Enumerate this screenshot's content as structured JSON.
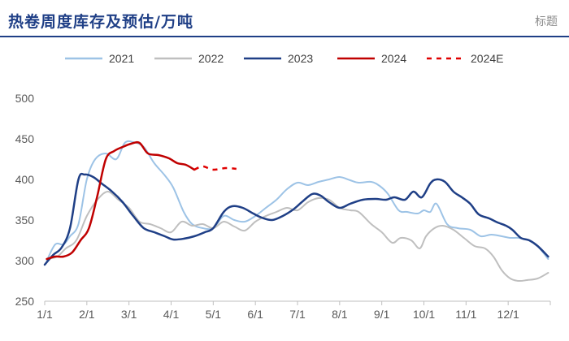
{
  "header": {
    "title": "热卷周度库存及预估/万吨",
    "tag": "标题"
  },
  "chart_data": {
    "type": "line",
    "title": "热卷周度库存及预估/万吨",
    "xlabel": "",
    "ylabel": "",
    "ylim": [
      250,
      500
    ],
    "yticks": [
      250,
      300,
      350,
      400,
      450,
      500
    ],
    "xlim": [
      0,
      12
    ],
    "xticks": [
      {
        "label": "1/1",
        "x": 0
      },
      {
        "label": "2/1",
        "x": 1
      },
      {
        "label": "3/1",
        "x": 2
      },
      {
        "label": "4/1",
        "x": 3
      },
      {
        "label": "5/1",
        "x": 4
      },
      {
        "label": "6/1",
        "x": 5
      },
      {
        "label": "7/1",
        "x": 6
      },
      {
        "label": "8/1",
        "x": 7
      },
      {
        "label": "9/1",
        "x": 8
      },
      {
        "label": "10/1",
        "x": 9
      },
      {
        "label": "11/1",
        "x": 10
      },
      {
        "label": "12/1",
        "x": 11
      }
    ],
    "grid": false,
    "legend_position": "top",
    "series": [
      {
        "name": "2021",
        "color": "#9dc3e6",
        "dashed": false,
        "width": 2,
        "points": [
          [
            0.05,
            300
          ],
          [
            0.25,
            320
          ],
          [
            0.45,
            320
          ],
          [
            0.6,
            330
          ],
          [
            0.8,
            345
          ],
          [
            1.0,
            400
          ],
          [
            1.2,
            425
          ],
          [
            1.45,
            432
          ],
          [
            1.7,
            425
          ],
          [
            1.9,
            445
          ],
          [
            2.1,
            446
          ],
          [
            2.35,
            440
          ],
          [
            2.6,
            420
          ],
          [
            2.85,
            405
          ],
          [
            3.05,
            390
          ],
          [
            3.3,
            360
          ],
          [
            3.5,
            345
          ],
          [
            3.75,
            340
          ],
          [
            4.0,
            340
          ],
          [
            4.25,
            355
          ],
          [
            4.5,
            350
          ],
          [
            4.75,
            348
          ],
          [
            5.0,
            355
          ],
          [
            5.25,
            365
          ],
          [
            5.5,
            375
          ],
          [
            5.75,
            388
          ],
          [
            6.0,
            396
          ],
          [
            6.25,
            393
          ],
          [
            6.5,
            397
          ],
          [
            6.75,
            400
          ],
          [
            7.0,
            403
          ],
          [
            7.25,
            399
          ],
          [
            7.45,
            396
          ],
          [
            7.75,
            397
          ],
          [
            7.95,
            392
          ],
          [
            8.15,
            382
          ],
          [
            8.4,
            362
          ],
          [
            8.6,
            360
          ],
          [
            8.85,
            358
          ],
          [
            9.0,
            362
          ],
          [
            9.15,
            360
          ],
          [
            9.3,
            370
          ],
          [
            9.55,
            345
          ],
          [
            9.8,
            340
          ],
          [
            10.1,
            338
          ],
          [
            10.35,
            330
          ],
          [
            10.6,
            332
          ],
          [
            10.85,
            330
          ],
          [
            11.05,
            328
          ],
          [
            11.25,
            328
          ],
          [
            11.5,
            325
          ],
          [
            11.7,
            318
          ],
          [
            11.95,
            302
          ]
        ]
      },
      {
        "name": "2022",
        "color": "#bfbfbf",
        "dashed": false,
        "width": 2,
        "points": [
          [
            0.05,
            302
          ],
          [
            0.3,
            305
          ],
          [
            0.5,
            315
          ],
          [
            0.75,
            325
          ],
          [
            1.0,
            355
          ],
          [
            1.25,
            375
          ],
          [
            1.5,
            385
          ],
          [
            1.75,
            375
          ],
          [
            2.0,
            365
          ],
          [
            2.25,
            348
          ],
          [
            2.5,
            345
          ],
          [
            2.75,
            340
          ],
          [
            3.0,
            335
          ],
          [
            3.25,
            348
          ],
          [
            3.5,
            343
          ],
          [
            3.75,
            345
          ],
          [
            4.0,
            340
          ],
          [
            4.25,
            348
          ],
          [
            4.5,
            342
          ],
          [
            4.75,
            337
          ],
          [
            5.0,
            348
          ],
          [
            5.25,
            355
          ],
          [
            5.5,
            360
          ],
          [
            5.75,
            365
          ],
          [
            6.0,
            362
          ],
          [
            6.25,
            372
          ],
          [
            6.5,
            377
          ],
          [
            6.75,
            375
          ],
          [
            7.0,
            365
          ],
          [
            7.25,
            362
          ],
          [
            7.45,
            360
          ],
          [
            7.75,
            345
          ],
          [
            8.0,
            335
          ],
          [
            8.25,
            322
          ],
          [
            8.45,
            328
          ],
          [
            8.7,
            325
          ],
          [
            8.9,
            315
          ],
          [
            9.05,
            330
          ],
          [
            9.25,
            340
          ],
          [
            9.45,
            343
          ],
          [
            9.7,
            338
          ],
          [
            9.95,
            328
          ],
          [
            10.2,
            318
          ],
          [
            10.45,
            315
          ],
          [
            10.65,
            305
          ],
          [
            10.85,
            288
          ],
          [
            11.05,
            278
          ],
          [
            11.25,
            275
          ],
          [
            11.45,
            276
          ],
          [
            11.7,
            278
          ],
          [
            11.95,
            285
          ]
        ]
      },
      {
        "name": "2023",
        "color": "#1f3f86",
        "dashed": false,
        "width": 2.5,
        "points": [
          [
            0.0,
            295
          ],
          [
            0.2,
            307
          ],
          [
            0.4,
            316
          ],
          [
            0.6,
            340
          ],
          [
            0.8,
            400
          ],
          [
            0.95,
            406
          ],
          [
            1.15,
            403
          ],
          [
            1.35,
            395
          ],
          [
            1.6,
            385
          ],
          [
            1.85,
            372
          ],
          [
            2.1,
            355
          ],
          [
            2.35,
            340
          ],
          [
            2.6,
            335
          ],
          [
            2.85,
            330
          ],
          [
            3.05,
            326
          ],
          [
            3.3,
            327
          ],
          [
            3.55,
            330
          ],
          [
            3.8,
            335
          ],
          [
            4.0,
            340
          ],
          [
            4.25,
            360
          ],
          [
            4.45,
            367
          ],
          [
            4.7,
            365
          ],
          [
            4.95,
            358
          ],
          [
            5.15,
            353
          ],
          [
            5.4,
            350
          ],
          [
            5.65,
            355
          ],
          [
            5.9,
            363
          ],
          [
            6.1,
            372
          ],
          [
            6.35,
            382
          ],
          [
            6.55,
            380
          ],
          [
            6.75,
            372
          ],
          [
            7.0,
            365
          ],
          [
            7.25,
            370
          ],
          [
            7.55,
            375
          ],
          [
            7.85,
            376
          ],
          [
            8.1,
            375
          ],
          [
            8.3,
            378
          ],
          [
            8.55,
            375
          ],
          [
            8.75,
            385
          ],
          [
            8.95,
            378
          ],
          [
            9.15,
            395
          ],
          [
            9.3,
            400
          ],
          [
            9.5,
            397
          ],
          [
            9.7,
            385
          ],
          [
            9.9,
            378
          ],
          [
            10.1,
            370
          ],
          [
            10.3,
            357
          ],
          [
            10.55,
            352
          ],
          [
            10.75,
            347
          ],
          [
            10.95,
            343
          ],
          [
            11.1,
            338
          ],
          [
            11.3,
            328
          ],
          [
            11.5,
            325
          ],
          [
            11.7,
            318
          ],
          [
            11.95,
            305
          ]
        ]
      },
      {
        "name": "2024",
        "color": "#c00000",
        "dashed": false,
        "width": 2.5,
        "points": [
          [
            0.05,
            302
          ],
          [
            0.25,
            305
          ],
          [
            0.45,
            305
          ],
          [
            0.65,
            310
          ],
          [
            0.85,
            325
          ],
          [
            1.05,
            340
          ],
          [
            1.25,
            380
          ],
          [
            1.45,
            425
          ],
          [
            1.65,
            435
          ],
          [
            1.85,
            440
          ],
          [
            2.05,
            444
          ],
          [
            2.25,
            445
          ],
          [
            2.45,
            432
          ],
          [
            2.7,
            430
          ],
          [
            2.95,
            426
          ],
          [
            3.15,
            420
          ],
          [
            3.35,
            418
          ],
          [
            3.55,
            412
          ]
        ]
      },
      {
        "name": "2024E",
        "color": "#e00000",
        "dashed": true,
        "width": 2.5,
        "points": [
          [
            3.55,
            412
          ],
          [
            3.75,
            416
          ],
          [
            4.0,
            412
          ],
          [
            4.3,
            414
          ],
          [
            4.55,
            413
          ]
        ]
      }
    ]
  }
}
